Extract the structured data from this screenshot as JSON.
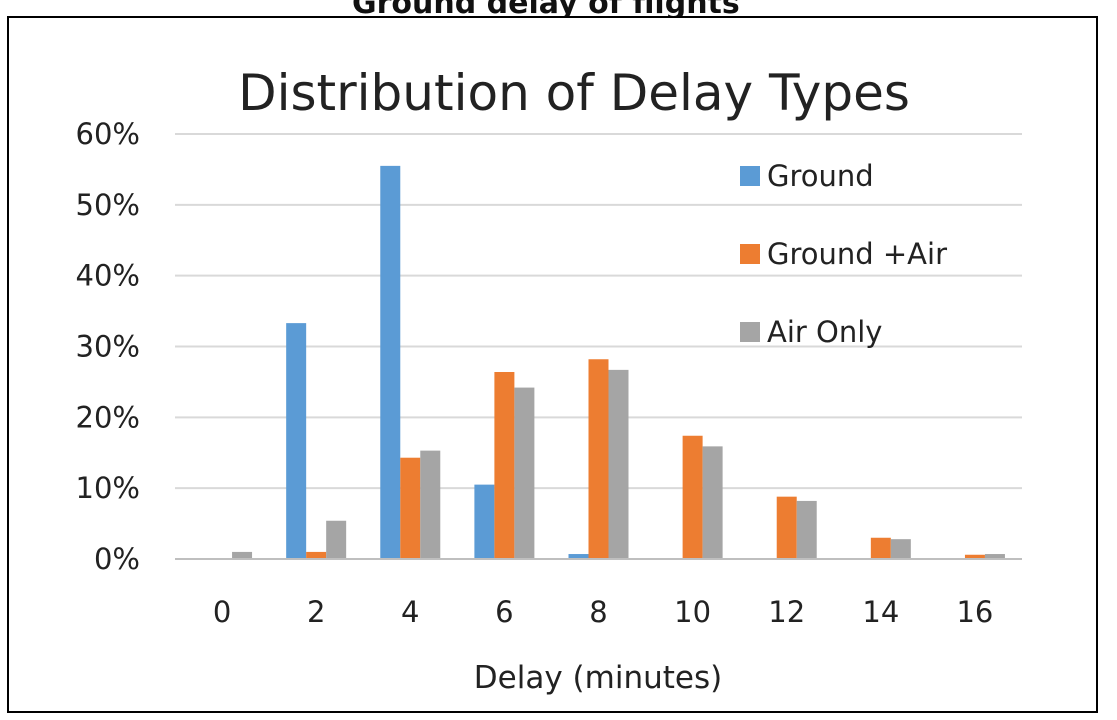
{
  "cropped_header": "Ground delay of flights",
  "chart_data": {
    "type": "bar",
    "title": "Distribution of Delay Types",
    "xlabel": "Delay (minutes)",
    "ylabel": "",
    "categories": [
      "0",
      "2",
      "4",
      "6",
      "8",
      "10",
      "12",
      "14",
      "16"
    ],
    "ylim": [
      0,
      60
    ],
    "yticks": [
      0,
      10,
      20,
      30,
      40,
      50,
      60
    ],
    "ytick_labels": [
      "0%",
      "10%",
      "20%",
      "30%",
      "40%",
      "50%",
      "60%"
    ],
    "grid": true,
    "legend_position": "right",
    "series": [
      {
        "name": "Ground",
        "color": "#5B9BD5",
        "values": [
          0,
          33.3,
          55.5,
          10.5,
          0.7,
          0,
          0,
          0,
          0
        ]
      },
      {
        "name": "Ground +Air",
        "color": "#ED7D31",
        "values": [
          0,
          1.0,
          14.3,
          26.4,
          28.2,
          17.4,
          8.8,
          3.0,
          0.6
        ]
      },
      {
        "name": "Air Only",
        "color": "#A5A5A5",
        "values": [
          1.0,
          5.4,
          15.3,
          24.2,
          26.7,
          15.9,
          8.2,
          2.8,
          0.7
        ]
      }
    ]
  }
}
